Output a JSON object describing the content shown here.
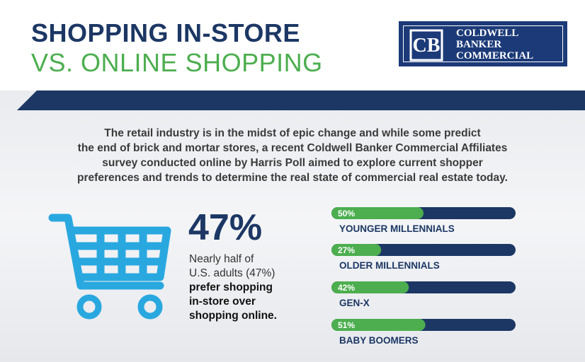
{
  "header": {
    "title_line1": "SHOPPING IN-STORE",
    "title_line2": "VS. ONLINE SHOPPING",
    "logo": [
      "COLDWELL",
      "BANKER",
      "COMMERCIAL"
    ]
  },
  "intro": [
    "The retail industry is in the midst of epic change and while some predict",
    "the end of brick and mortar stores, a recent Coldwell Banker Commercial Affiliates",
    "survey conducted online by Harris Poll aimed to explore current shopper",
    "preferences and trends to determine the real state of commercial real estate today."
  ],
  "stat": {
    "figure": "47%",
    "lines": [
      "Nearly half of",
      "U.S. adults (47%)"
    ],
    "bold_lines": [
      "prefer shopping",
      "in-store over",
      "shopping online."
    ]
  },
  "generations": {
    "categories": [
      "YOUNGER MILLENNIALS",
      "OLDER MILLENNIALS",
      "GEN-X",
      "BABY BOOMERS"
    ],
    "values": [
      50,
      27,
      42,
      51
    ],
    "value_labels": [
      "50%",
      "27%",
      "42%",
      "51%"
    ],
    "xlim": [
      0,
      100
    ],
    "color": "#4cae4f",
    "track_color": "#1c3764"
  }
}
